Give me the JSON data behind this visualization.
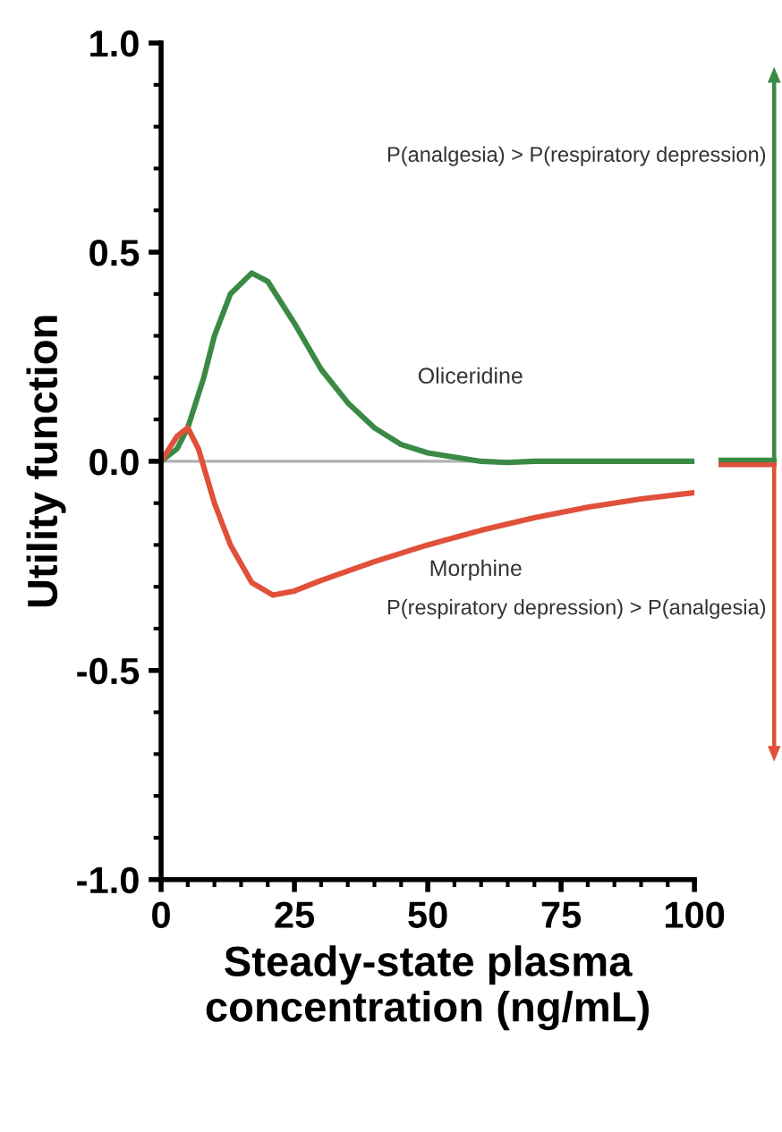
{
  "chart_data": {
    "type": "line",
    "xlabel": "Steady-state plasma\nconcentration (ng/mL)",
    "ylabel": "Utility function",
    "xlim": [
      0,
      100
    ],
    "xticks": [
      0,
      25,
      50,
      75,
      100
    ],
    "ylim": [
      -1.0,
      1.0
    ],
    "yticks": [
      {
        "value": -1.0,
        "label": "-1.0"
      },
      {
        "value": -0.5,
        "label": "-0.5"
      },
      {
        "value": 0.0,
        "label": "0.0"
      },
      {
        "value": 0.5,
        "label": "0.5"
      },
      {
        "value": 1.0,
        "label": "1.0"
      }
    ],
    "grid": false,
    "legend": false,
    "marker": "none",
    "line_style": "solid",
    "ref_lines": [
      {
        "axis": "y",
        "value": 0,
        "color": "#b0b0b0"
      }
    ],
    "series": [
      {
        "name": "Oliceridine",
        "color": "#3a8a45",
        "x": [
          0,
          3,
          5,
          8,
          10,
          13,
          17,
          20,
          25,
          30,
          35,
          40,
          45,
          50,
          55,
          60,
          65,
          70,
          80,
          90,
          100
        ],
        "values": [
          0,
          0.03,
          0.08,
          0.2,
          0.3,
          0.4,
          0.45,
          0.43,
          0.33,
          0.22,
          0.14,
          0.08,
          0.04,
          0.02,
          0.01,
          0.0,
          -0.003,
          0,
          0,
          0,
          0
        ]
      },
      {
        "name": "Morphine",
        "color": "#e0503a",
        "x": [
          0,
          3,
          5,
          7,
          10,
          13,
          17,
          21,
          25,
          30,
          40,
          50,
          60,
          70,
          80,
          90,
          100
        ],
        "values": [
          0,
          0.06,
          0.08,
          0.03,
          -0.1,
          -0.2,
          -0.29,
          -0.32,
          -0.31,
          -0.285,
          -0.24,
          -0.2,
          -0.165,
          -0.135,
          -0.11,
          -0.09,
          -0.075
        ]
      }
    ],
    "annotations": [
      "P(analgesia) > P(respiratory depression)",
      "P(respiratory depression) > P(analgesia)"
    ]
  }
}
